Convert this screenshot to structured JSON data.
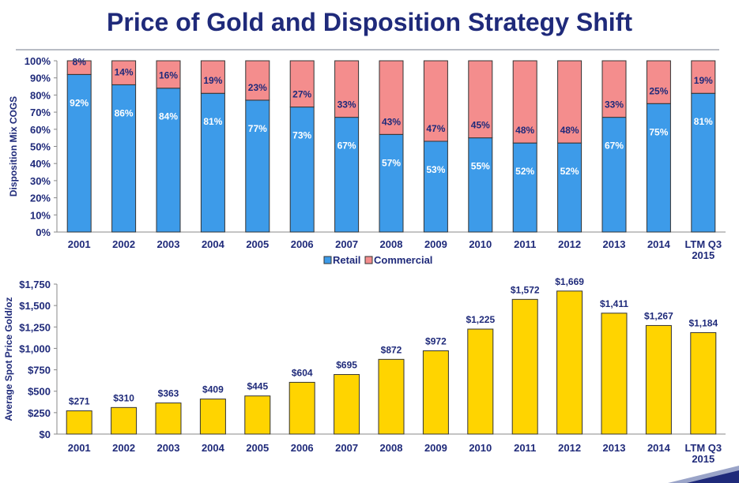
{
  "title": "Price of Gold and Disposition Strategy Shift",
  "chart_data": [
    {
      "type": "bar",
      "stacked": true,
      "ylabel": "Disposition Mix COGS",
      "ylim": [
        0,
        100
      ],
      "y_ticks": [
        "0%",
        "10%",
        "20%",
        "30%",
        "40%",
        "50%",
        "60%",
        "70%",
        "80%",
        "90%",
        "100%"
      ],
      "categories": [
        "2001",
        "2002",
        "2003",
        "2004",
        "2005",
        "2006",
        "2007",
        "2008",
        "2009",
        "2010",
        "2011",
        "2012",
        "2013",
        "2014",
        "LTM Q3 2015"
      ],
      "category_lines": [
        [
          "2001"
        ],
        [
          "2002"
        ],
        [
          "2003"
        ],
        [
          "2004"
        ],
        [
          "2005"
        ],
        [
          "2006"
        ],
        [
          "2007"
        ],
        [
          "2008"
        ],
        [
          "2009"
        ],
        [
          "2010"
        ],
        [
          "2011"
        ],
        [
          "2012"
        ],
        [
          "2013"
        ],
        [
          "2014"
        ],
        [
          "LTM Q3",
          "2015"
        ]
      ],
      "series": [
        {
          "name": "Retail",
          "color": "#3d9be9",
          "values": [
            92,
            86,
            84,
            81,
            77,
            73,
            67,
            57,
            53,
            55,
            52,
            52,
            67,
            75,
            81
          ],
          "labels": [
            "92%",
            "86%",
            "84%",
            "81%",
            "77%",
            "73%",
            "67%",
            "57%",
            "53%",
            "55%",
            "52%",
            "52%",
            "67%",
            "75%",
            "81%"
          ]
        },
        {
          "name": "Commercial",
          "color": "#f48d8d",
          "values": [
            8,
            14,
            16,
            19,
            23,
            27,
            33,
            43,
            47,
            45,
            48,
            48,
            33,
            25,
            19
          ],
          "labels": [
            "8%",
            "14%",
            "16%",
            "19%",
            "23%",
            "27%",
            "33%",
            "43%",
            "47%",
            "45%",
            "48%",
            "48%",
            "33%",
            "25%",
            "19%"
          ]
        }
      ],
      "legend_position": "bottom-center",
      "grid": false
    },
    {
      "type": "bar",
      "ylabel": "Average Spot Price Gold/oz",
      "ylim": [
        0,
        1750
      ],
      "y_ticks": [
        "$0",
        "$250",
        "$500",
        "$750",
        "$1,000",
        "$1,250",
        "$1,500",
        "$1,750"
      ],
      "categories": [
        "2001",
        "2002",
        "2003",
        "2004",
        "2005",
        "2006",
        "2007",
        "2008",
        "2009",
        "2010",
        "2011",
        "2012",
        "2013",
        "2014",
        "LTM Q3 2015"
      ],
      "category_lines": [
        [
          "2001"
        ],
        [
          "2002"
        ],
        [
          "2003"
        ],
        [
          "2004"
        ],
        [
          "2005"
        ],
        [
          "2006"
        ],
        [
          "2007"
        ],
        [
          "2008"
        ],
        [
          "2009"
        ],
        [
          "2010"
        ],
        [
          "2011"
        ],
        [
          "2012"
        ],
        [
          "2013"
        ],
        [
          "2014"
        ],
        [
          "LTM Q3",
          "2015"
        ]
      ],
      "values": [
        271,
        310,
        363,
        409,
        445,
        604,
        695,
        872,
        972,
        1225,
        1572,
        1669,
        1411,
        1267,
        1184
      ],
      "labels": [
        "$271",
        "$310",
        "$363",
        "$409",
        "$445",
        "$604",
        "$695",
        "$872",
        "$972",
        "$1,225",
        "$1,572",
        "$1,669",
        "$1,411",
        "$1,267",
        "$1,184"
      ],
      "color": "#ffd400",
      "grid": false
    }
  ]
}
